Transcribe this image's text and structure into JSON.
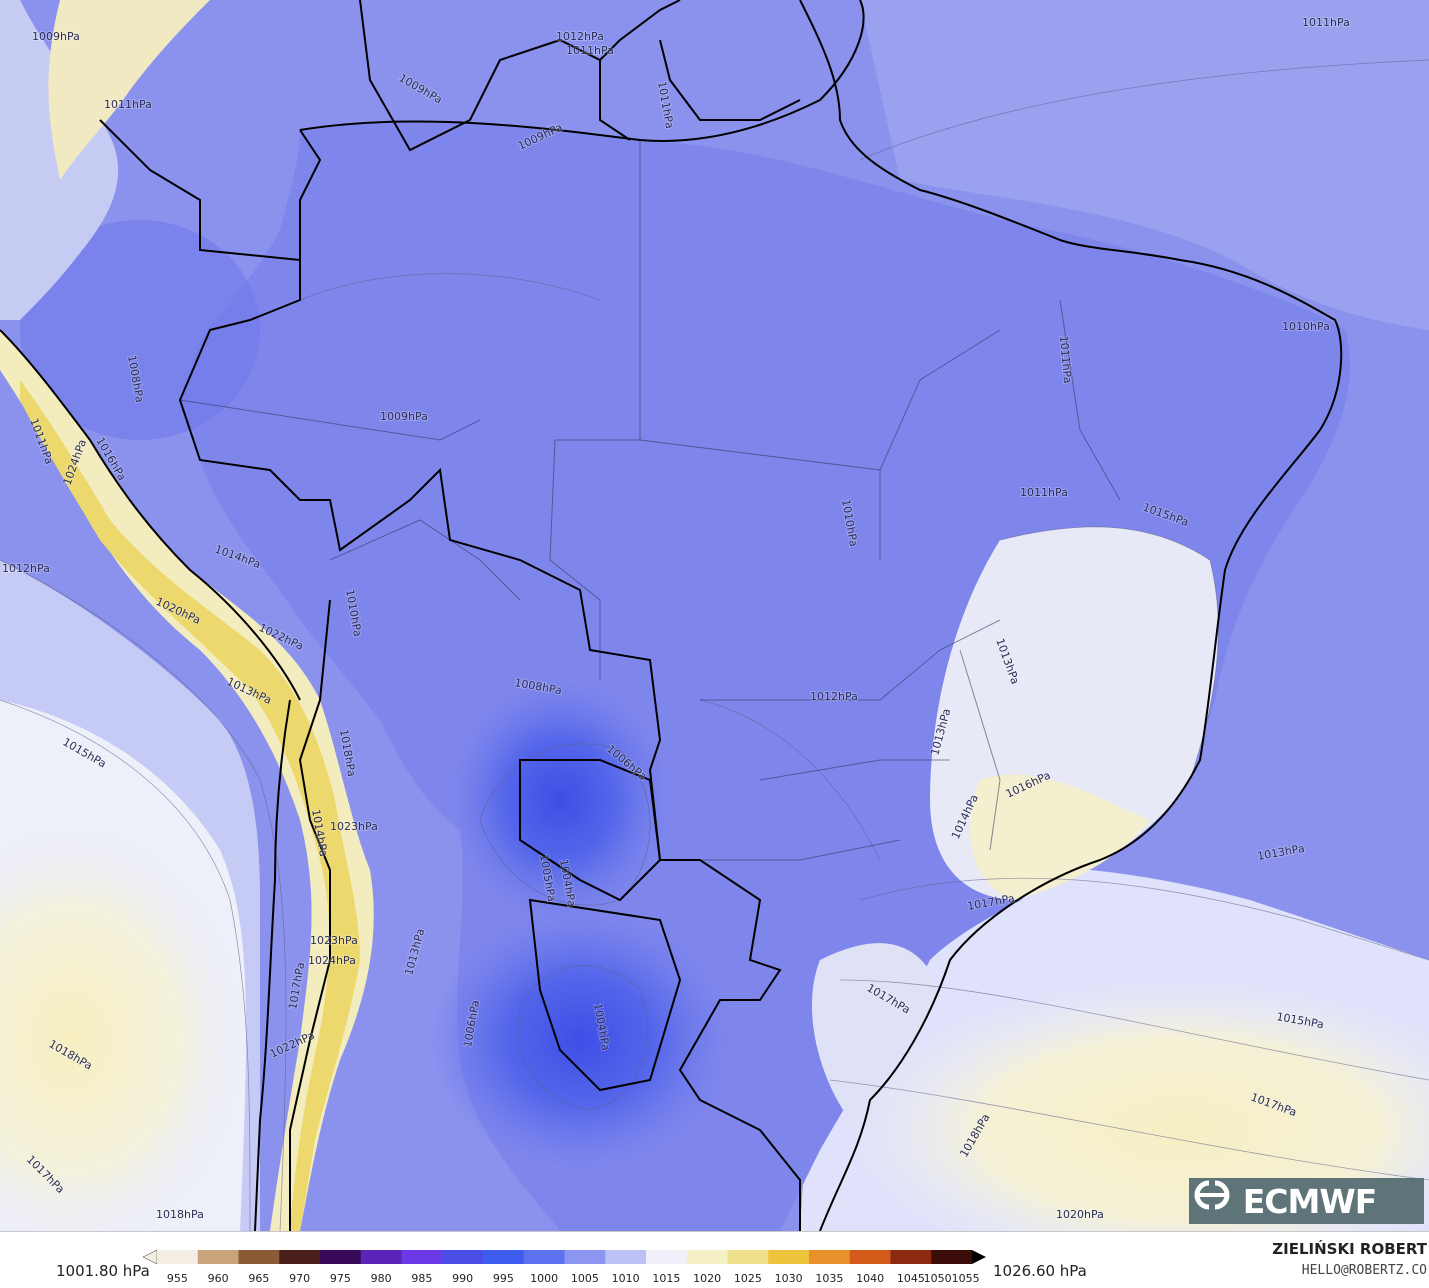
{
  "map": {
    "isobar_labels": [
      "1009hPa",
      "1011hPa",
      "1012hPa",
      "1011hPa",
      "1009hPa",
      "1011hPa",
      "1009hPa",
      "1011hPa",
      "1010hPa",
      "1011hPa",
      "1009hPa",
      "1008hPa",
      "1011hPa",
      "1016hPa",
      "1014hPa",
      "1012hPa",
      "1010hPa",
      "1020hPa",
      "1022hPa",
      "1013hPa",
      "1015hPa",
      "1008hPa",
      "1006hPa",
      "1012hPa",
      "1013hPa",
      "1013hPa",
      "1016hPa",
      "1014hPa",
      "1018hPa",
      "1023hPa",
      "1014hPa",
      "1005hPa",
      "1004hPa",
      "1006hPa",
      "1004hPa",
      "1023hPa",
      "1024hPa",
      "1013hPa",
      "1017hPa",
      "1022hPa",
      "1018hPa",
      "1017hPa",
      "1015hPa",
      "1017hPa",
      "1018hPa",
      "1020hPa",
      "1018hPa",
      "1017hPa",
      "1024hPa",
      "1013hPa",
      "1015hPa",
      "1011hPa",
      "1010hPa",
      "1017hPa"
    ]
  },
  "colorbar": {
    "min_label": "1001.80 hPa",
    "max_label": "1026.60 hPa",
    "ticks": [
      "955",
      "960",
      "965",
      "970",
      "975",
      "980",
      "985",
      "990",
      "995",
      "1000",
      "1005",
      "1010",
      "1015",
      "1020",
      "1025",
      "1030",
      "1035",
      "1040",
      "1045",
      "10501055"
    ],
    "colors": [
      "#f3ede3",
      "#c9a37c",
      "#8c5a35",
      "#4a1f1a",
      "#3a0a5a",
      "#5a24b8",
      "#6b3ae6",
      "#4a4ee6",
      "#3e5cf0",
      "#5c72f0",
      "#8c96f2",
      "#bdc2f6",
      "#f0f0fa",
      "#f6f0c6",
      "#efe08c",
      "#eec33c",
      "#e8902a",
      "#d45a1a",
      "#8c2a10",
      "#3c0c08"
    ]
  },
  "logo": {
    "text": "ECMWF",
    "icon": "ecmwf-logo-icon"
  },
  "author": {
    "name": "ZIELIŃSKI ROBERT",
    "email": "HELLO@ROBERTZ.CO"
  }
}
